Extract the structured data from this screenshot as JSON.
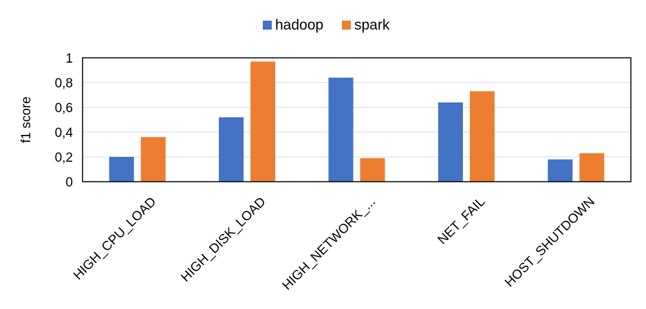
{
  "chart_data": {
    "type": "bar",
    "categories": [
      "HIGH_CPU_LOAD",
      "HIGH_DISK_LOAD",
      "HIGH_NETWORK_...",
      "NET_FAIL",
      "HOST_SHUTDOWN"
    ],
    "series": [
      {
        "name": "hadoop",
        "color": "#4472C4",
        "values": [
          0.2,
          0.52,
          0.84,
          0.64,
          0.18
        ]
      },
      {
        "name": "spark",
        "color": "#ED7D31",
        "values": [
          0.36,
          0.97,
          0.19,
          0.73,
          0.23
        ]
      }
    ],
    "ylabel": "f1 score",
    "xlabel": "",
    "ylim": [
      0,
      1
    ],
    "yticks": [
      "0",
      "0,2",
      "0,4",
      "0,6",
      "0,8",
      "1"
    ],
    "grid": true,
    "legend_position": "top-center"
  }
}
